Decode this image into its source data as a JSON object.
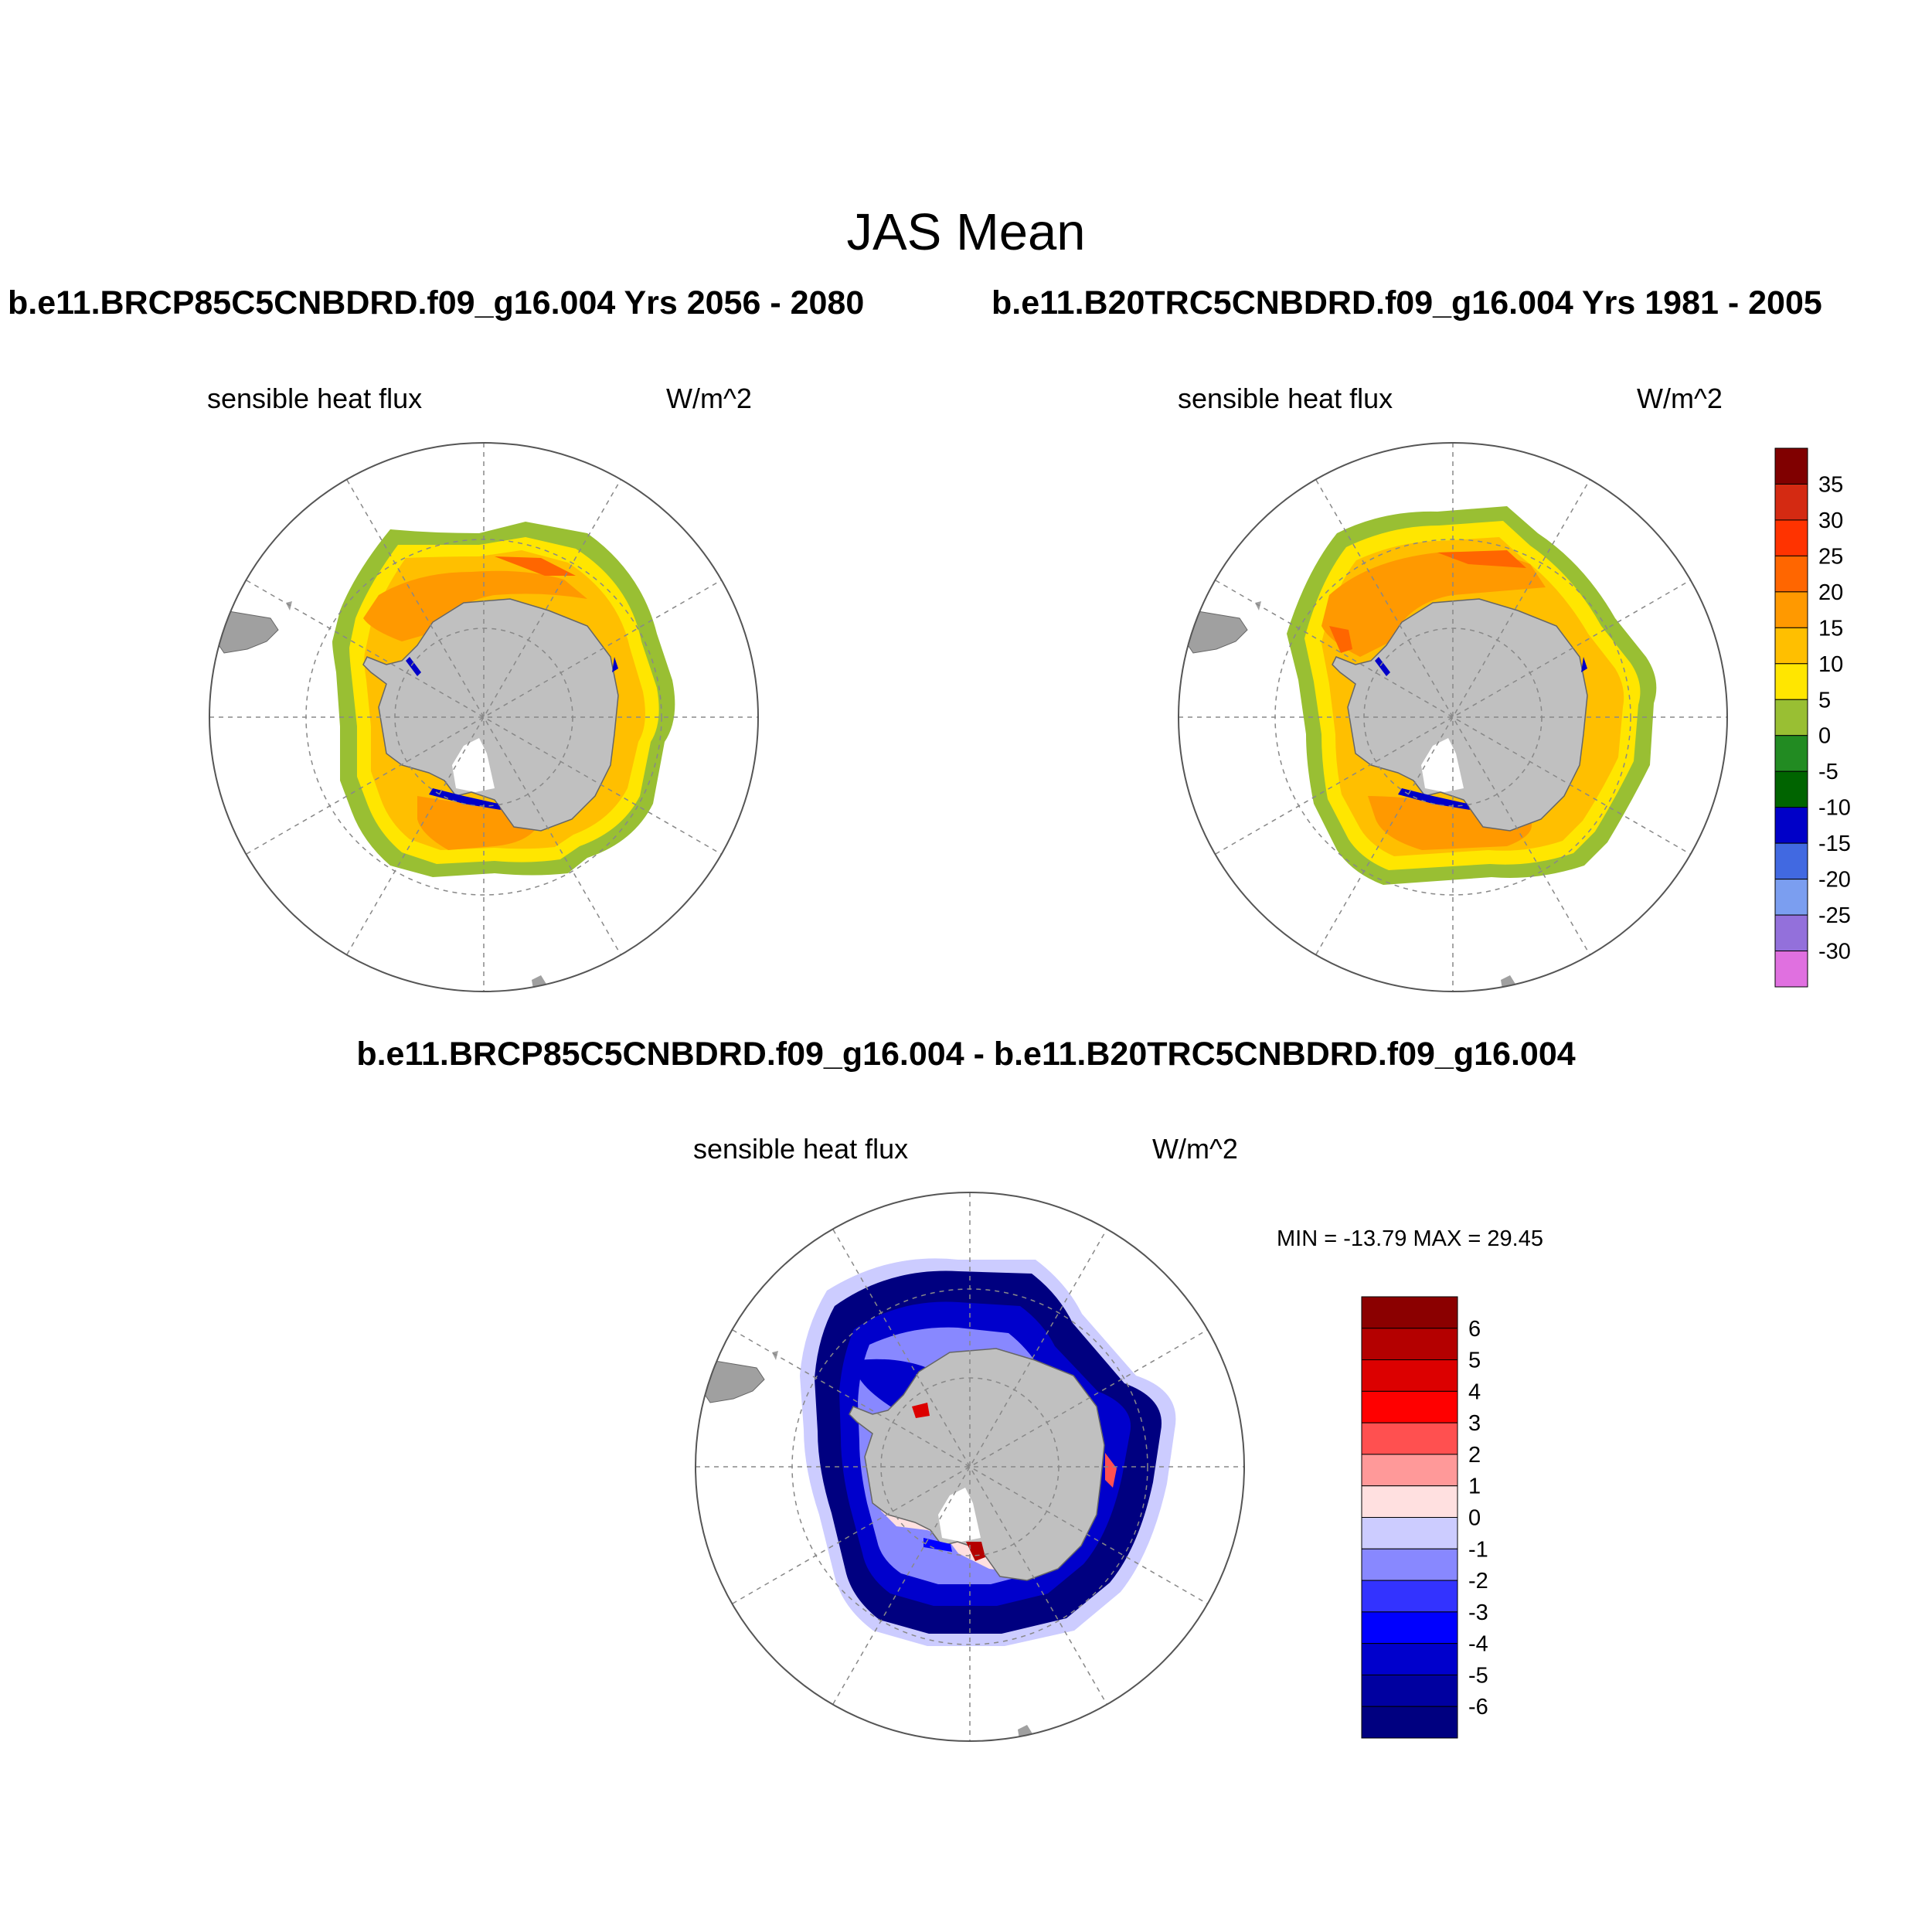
{
  "figure": {
    "title": "JAS Mean",
    "top_left_case": "b.e11.BRCP85C5CNBDRD.f09_g16.004  Yrs 2056 - 2080",
    "top_right_case": "b.e11.B20TRC5CNBDRD.f09_g16.004  Yrs 1981 - 2005",
    "diff_case": "b.e11.BRCP85C5CNBDRD.f09_g16.004 - b.e11.B20TRC5CNBDRD.f09_g16.004"
  },
  "panels": [
    {
      "variable": "sensible heat flux",
      "units": "W/m^2"
    },
    {
      "variable": "sensible heat flux",
      "units": "W/m^2"
    },
    {
      "variable": "sensible heat flux",
      "units": "W/m^2",
      "stats": "MIN = -13.79 MAX =  29.45"
    }
  ],
  "colorbar_mean": {
    "labels": [
      "35",
      "30",
      "25",
      "20",
      "15",
      "10",
      "5",
      "0",
      "-5",
      "-10",
      "-15",
      "-20",
      "-25",
      "-30"
    ],
    "colors_top_to_bottom": [
      "#800000",
      "#d42a12",
      "#ff3300",
      "#ff6600",
      "#ff9900",
      "#ffbf00",
      "#ffe600",
      "#99bf33",
      "#228b22",
      "#006400",
      "#0000c8",
      "#4169e1",
      "#7b9ef0",
      "#9370db",
      "#e070e0"
    ]
  },
  "colorbar_diff": {
    "labels": [
      "6",
      "5",
      "4",
      "3",
      "2",
      "1",
      "0",
      "-1",
      "-2",
      "-3",
      "-4",
      "-5",
      "-6"
    ],
    "colors_top_to_bottom": [
      "#8b0000",
      "#b40000",
      "#dc0000",
      "#ff0000",
      "#ff5050",
      "#ff9999",
      "#ffe0e0",
      "#ccccff",
      "#8888ff",
      "#3333ff",
      "#0000ff",
      "#0000cc",
      "#0000a0",
      "#000080"
    ]
  }
}
